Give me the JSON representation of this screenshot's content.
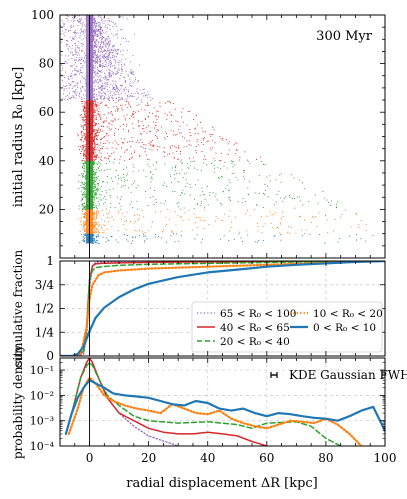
{
  "figure": {
    "annotation": "300 Myr",
    "xlabel": "radial displacement ΔR [kpc]",
    "xlim": [
      -10,
      100
    ],
    "xticks": [
      0,
      20,
      40,
      60,
      80,
      100
    ]
  },
  "chart_data": [
    {
      "type": "scatter",
      "panel": "top",
      "ylabel": "initial radius R₀ [kpc]",
      "ylim": [
        0,
        100
      ],
      "yticks": [
        20,
        40,
        60,
        80,
        100
      ],
      "xlim": [
        -10,
        100
      ],
      "series": [
        {
          "name": "65 < R₀ < 100",
          "color": "#9467bd",
          "r0": [
            65,
            100
          ],
          "x_max": [
            22,
            1
          ]
        },
        {
          "name": "40 < R₀ < 65",
          "color": "#d62728",
          "r0": [
            40,
            65
          ],
          "x_max": [
            60,
            28
          ]
        },
        {
          "name": "20 < R₀ < 40",
          "color": "#2ca02c",
          "r0": [
            20,
            40
          ],
          "x_max": [
            90,
            60
          ]
        },
        {
          "name": "10 < R₀ < 20",
          "color": "#ff7f0e",
          "r0": [
            10,
            20
          ],
          "x_max": [
            96,
            90
          ]
        },
        {
          "name": "0 < R₀ < 10",
          "color": "#1f77b4",
          "r0": [
            6,
            10
          ],
          "x_max": [
            98,
            96
          ]
        }
      ],
      "grid": false
    },
    {
      "type": "line",
      "panel": "middle",
      "ylabel": "cumulative fraction",
      "ylim": [
        0,
        1
      ],
      "ytick_labels": [
        "0",
        "1/4",
        "1/2",
        "3/4",
        "1"
      ],
      "grid": true,
      "legend": "lower-right",
      "series": [
        {
          "name": "65 < R₀ < 100",
          "color": "#9467bd",
          "dash": "dotted",
          "width": 1.3,
          "x": [
            -10,
            -4,
            -2,
            -1,
            0,
            1,
            2,
            4,
            10,
            20,
            100
          ],
          "y": [
            0,
            0,
            0.02,
            0.2,
            0.7,
            0.95,
            0.985,
            0.99,
            0.995,
            1,
            1
          ]
        },
        {
          "name": "40 < R₀ < 65",
          "color": "#d62728",
          "dash": "solid",
          "width": 1.5,
          "x": [
            -10,
            -4,
            -2,
            -1,
            0,
            1,
            2,
            4,
            10,
            20,
            40,
            100
          ],
          "y": [
            0,
            0,
            0.05,
            0.3,
            0.8,
            0.95,
            0.97,
            0.975,
            0.98,
            0.985,
            0.99,
            1
          ]
        },
        {
          "name": "20 < R₀ < 40",
          "color": "#2ca02c",
          "dash": "dashed",
          "width": 1.5,
          "x": [
            -10,
            -4,
            -2,
            -1,
            0,
            1,
            2,
            4,
            10,
            20,
            40,
            60,
            100
          ],
          "y": [
            0,
            0,
            0.05,
            0.3,
            0.8,
            0.9,
            0.93,
            0.94,
            0.955,
            0.965,
            0.975,
            0.985,
            1
          ]
        },
        {
          "name": "10 < R₀ < 20",
          "color": "#ff7f0e",
          "dash": "dotted",
          "width": 2.2,
          "x": [
            -10,
            -5,
            -3,
            -1,
            0,
            1,
            3,
            5,
            10,
            20,
            40,
            60,
            80,
            100
          ],
          "y": [
            0,
            0,
            0.02,
            0.3,
            0.6,
            0.75,
            0.85,
            0.88,
            0.9,
            0.92,
            0.94,
            0.96,
            0.98,
            1
          ]
        },
        {
          "name": "0 < R₀ < 10",
          "color": "#1f77b4",
          "dash": "solid",
          "width": 2.2,
          "x": [
            -10,
            -6,
            -4,
            -2,
            0,
            2,
            5,
            10,
            15,
            20,
            30,
            40,
            50,
            60,
            70,
            80,
            90,
            100
          ],
          "y": [
            0,
            0,
            0.02,
            0.1,
            0.26,
            0.4,
            0.51,
            0.62,
            0.7,
            0.76,
            0.83,
            0.88,
            0.91,
            0.94,
            0.96,
            0.975,
            0.99,
            1
          ]
        }
      ]
    },
    {
      "type": "line",
      "panel": "bottom",
      "ylabel": "probability density",
      "yscale": "log",
      "ylim": [
        0.0001,
        0.3
      ],
      "ytick_labels": [
        "10⁻⁴",
        "10⁻³",
        "10⁻²",
        "10⁻¹"
      ],
      "grid": true,
      "annotation": "KDE Gaussian FWHM",
      "series": [
        {
          "name": "65 < R₀ < 100",
          "color": "#9467bd",
          "dash": "dotted",
          "width": 1.3,
          "x": [
            -6,
            -3,
            -1,
            0,
            1,
            3,
            6,
            10,
            15,
            20,
            30
          ],
          "y": [
            0.002,
            0.05,
            0.2,
            0.3,
            0.2,
            0.05,
            0.008,
            0.002,
            0.0006,
            0.00025,
            0.0001
          ]
        },
        {
          "name": "40 < R₀ < 65",
          "color": "#d62728",
          "dash": "solid",
          "width": 1.5,
          "x": [
            -6,
            -3,
            -1,
            0,
            1,
            3,
            6,
            10,
            15,
            20,
            25,
            30,
            35,
            40,
            45,
            50,
            55,
            60
          ],
          "y": [
            0.002,
            0.05,
            0.2,
            0.3,
            0.2,
            0.05,
            0.008,
            0.002,
            0.001,
            0.0005,
            0.00035,
            0.0003,
            0.0003,
            0.00035,
            0.0003,
            0.00025,
            0.00015,
            0.0001
          ]
        },
        {
          "name": "20 < R₀ < 40",
          "color": "#2ca02c",
          "dash": "dashed",
          "width": 1.5,
          "x": [
            -6,
            -3,
            -1,
            0,
            1,
            3,
            6,
            10,
            15,
            20,
            30,
            40,
            50,
            55,
            60,
            70,
            75,
            80,
            85
          ],
          "y": [
            0.002,
            0.05,
            0.15,
            0.2,
            0.15,
            0.05,
            0.01,
            0.004,
            0.0015,
            0.001,
            0.0008,
            0.0009,
            0.0007,
            0.0005,
            0.0008,
            0.0009,
            0.0006,
            0.0002,
            0.0001
          ]
        },
        {
          "name": "10 < R₀ < 20",
          "color": "#ff7f0e",
          "dash": "dotted",
          "width": 2.2,
          "x": [
            -7,
            -4,
            -2,
            0,
            2,
            5,
            8,
            12,
            16,
            20,
            24,
            28,
            32,
            36,
            40,
            44,
            48,
            52,
            56,
            60,
            64,
            68,
            72,
            76,
            80,
            84,
            88,
            92
          ],
          "y": [
            0.0003,
            0.003,
            0.02,
            0.05,
            0.03,
            0.01,
            0.006,
            0.004,
            0.003,
            0.0025,
            0.002,
            0.0045,
            0.003,
            0.002,
            0.0018,
            0.0025,
            0.0012,
            0.0008,
            0.0006,
            0.0005,
            0.0007,
            0.001,
            0.0009,
            0.0008,
            0.0012,
            0.0007,
            0.0003,
            0.0001
          ]
        },
        {
          "name": "0 < R₀ < 10",
          "color": "#1f77b4",
          "dash": "solid",
          "width": 2.2,
          "x": [
            -8,
            -6,
            -4,
            -2,
            0,
            2,
            5,
            8,
            12,
            16,
            20,
            24,
            28,
            32,
            36,
            40,
            44,
            48,
            52,
            56,
            60,
            64,
            68,
            72,
            76,
            80,
            84,
            88,
            92,
            96,
            100
          ],
          "y": [
            0.0003,
            0.002,
            0.008,
            0.02,
            0.04,
            0.03,
            0.02,
            0.012,
            0.01,
            0.009,
            0.008,
            0.006,
            0.0045,
            0.004,
            0.006,
            0.005,
            0.003,
            0.0025,
            0.003,
            0.002,
            0.0015,
            0.002,
            0.0018,
            0.0015,
            0.0013,
            0.0012,
            0.001,
            0.0015,
            0.0025,
            0.0035,
            0.0004
          ]
        }
      ]
    }
  ]
}
